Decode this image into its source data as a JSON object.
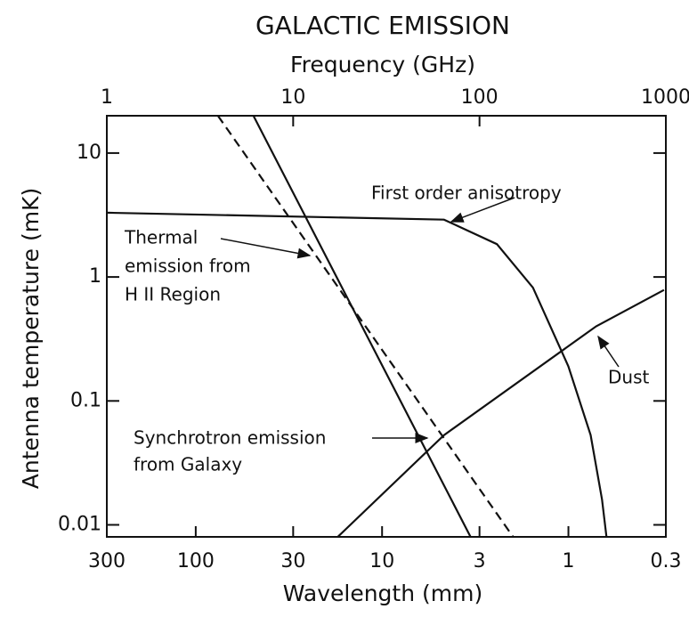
{
  "chart_data": {
    "type": "line",
    "title": "GALACTIC EMISSION",
    "x2_label": "Frequency (GHz)",
    "x_label": "Wavelength (mm)",
    "y_label": "Antenna temperature (mK)",
    "log_x": true,
    "log_y": true,
    "xlim": [
      300,
      0.3
    ],
    "xticks": [
      300,
      100,
      30,
      10,
      3,
      1,
      0.3
    ],
    "x2lim": [
      1,
      1000
    ],
    "x2ticks": [
      1,
      10,
      100,
      1000
    ],
    "ylim": [
      0.008,
      20
    ],
    "yticks": [
      0.01,
      0.1,
      1,
      10
    ],
    "series": [
      {
        "color": "#111",
        "dash": false,
        "x": [
          300,
          4.65,
          2.42,
          1.55,
          1.0,
          0.76,
          0.66,
          0.625
        ],
        "values": [
          3.3,
          2.9,
          1.84,
          0.82,
          0.19,
          0.053,
          0.016,
          0.008
        ]
      },
      {
        "color": "#111",
        "dash": false,
        "x": [
          49,
          3.35
        ],
        "values": [
          20,
          0.008
        ]
      },
      {
        "color": "#111",
        "dash": true,
        "x": [
          76,
          1.98
        ],
        "values": [
          20,
          0.008
        ]
      },
      {
        "color": "#111",
        "dash": false,
        "x": [
          17.3,
          4.65,
          0.71,
          0.307
        ],
        "values": [
          0.008,
          0.053,
          0.4,
          0.785
        ]
      }
    ],
    "annotations": [
      {
        "lines": [
          "First order anisotropy"
        ]
      },
      {
        "lines": [
          "Thermal",
          "emission from",
          "H II Region"
        ]
      },
      {
        "lines": [
          "Synchrotron emission",
          "from Galaxy"
        ]
      },
      {
        "lines": [
          "Dust"
        ]
      }
    ]
  }
}
